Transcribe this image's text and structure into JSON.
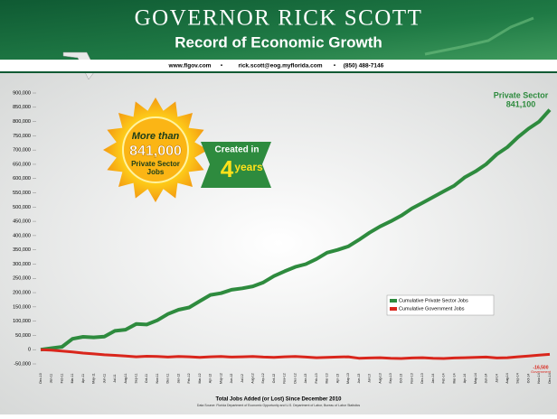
{
  "chart_data": {
    "type": "line",
    "title": "GOVERNOR RICK SCOTT",
    "subtitle": "Record of Economic Growth",
    "contact": [
      "www.flgov.com",
      "rick.scott@eog.myflorida.com",
      "(850) 488-7146"
    ],
    "badge": {
      "top": "More than",
      "number": "841,000",
      "bottom": "Private Sector Jobs"
    },
    "ribbon": {
      "top": "Created in",
      "number": "4",
      "bottom": "years"
    },
    "end_annotation": {
      "name": "Private Sector",
      "value": "841,100"
    },
    "gov_annotation": {
      "value": "-16,500",
      "name": "Government"
    },
    "x_label": "Total Jobs Added (or Lost) Since December 2010",
    "source": "Data Source: Florida Department of Economic Opportunity and U.S. Department of Labor, Bureau of Labor Statistics",
    "categories": [
      "Dec-10",
      "Jan-11",
      "Feb-11",
      "Mar-11",
      "Apr-11",
      "May-11",
      "Jun-11",
      "Jul-11",
      "Aug-11",
      "Sep-11",
      "Oct-11",
      "Nov-11",
      "Dec-11",
      "Jan-12",
      "Feb-12",
      "Mar-12",
      "Apr-12",
      "May-12",
      "Jun-12",
      "Jul-12",
      "Aug-12",
      "Sep-12",
      "Oct-12",
      "Nov-12",
      "Dec-12",
      "Jan-13",
      "Feb-13",
      "Mar-13",
      "Apr-13",
      "May-13",
      "Jun-13",
      "Jul-13",
      "Aug-13",
      "Sep-13",
      "Oct-13",
      "Nov-13",
      "Dec-13",
      "Jan-14",
      "Feb-14",
      "Mar-14",
      "Apr-14",
      "May-14",
      "Jun-14",
      "Jul-14",
      "Aug-14",
      "Sep-14",
      "Oct-14",
      "Nov-14",
      "Dec-14"
    ],
    "series": [
      {
        "name": "Cumulative Private Sector Jobs",
        "color": "#2e8b3e",
        "values": [
          0,
          5000,
          10000,
          38000,
          45000,
          43000,
          46000,
          66000,
          70000,
          90000,
          88000,
          103000,
          125000,
          140000,
          148000,
          170000,
          192000,
          198000,
          210000,
          215000,
          222000,
          236000,
          258000,
          275000,
          290000,
          300000,
          318000,
          340000,
          350000,
          362000,
          385000,
          410000,
          432000,
          450000,
          470000,
          495000,
          515000,
          535000,
          555000,
          575000,
          605000,
          625000,
          650000,
          685000,
          710000,
          745000,
          775000,
          800000,
          841100
        ]
      },
      {
        "name": "Cumulative Government Jobs",
        "color": "#d9261c",
        "values": [
          0,
          -2000,
          -5000,
          -8000,
          -12000,
          -15000,
          -18000,
          -20000,
          -22000,
          -25000,
          -23000,
          -24000,
          -26000,
          -24000,
          -25000,
          -27000,
          -25000,
          -24000,
          -26000,
          -25000,
          -24000,
          -26000,
          -27000,
          -25000,
          -24000,
          -26000,
          -28000,
          -27000,
          -26000,
          -25000,
          -30000,
          -29000,
          -28000,
          -30000,
          -31000,
          -29000,
          -28000,
          -30000,
          -31000,
          -29000,
          -28000,
          -27000,
          -26000,
          -29000,
          -28000,
          -25000,
          -22000,
          -19000,
          -16500
        ]
      }
    ],
    "ylim": [
      -50000,
      900000
    ],
    "yticks": [
      {
        "value": -50000,
        "label": "-50,000"
      },
      0,
      {
        "value": 50000,
        "label": "50,000"
      },
      {
        "value": 100000,
        "label": "100,000"
      },
      {
        "value": 150000,
        "label": "150,000"
      },
      {
        "value": 200000,
        "label": "200,000"
      },
      {
        "value": 250000,
        "label": "250,000"
      },
      {
        "value": 300000,
        "label": "300,000"
      },
      {
        "value": 350000,
        "label": "350,000"
      },
      {
        "value": 400000,
        "label": "400,000"
      },
      {
        "value": 450000,
        "label": "450,000"
      },
      {
        "value": 500000,
        "label": "500,000"
      },
      {
        "value": 550000,
        "label": "550,000"
      },
      {
        "value": 600000,
        "label": "600,000"
      },
      {
        "value": 650000,
        "label": "650,000"
      },
      {
        "value": 700000,
        "label": "700,000"
      },
      {
        "value": 750000,
        "label": "750,000"
      },
      {
        "value": 800000,
        "label": "800,000"
      },
      {
        "value": 850000,
        "label": "850,000"
      },
      {
        "value": 900000,
        "label": "900,000"
      }
    ],
    "grid": false
  }
}
